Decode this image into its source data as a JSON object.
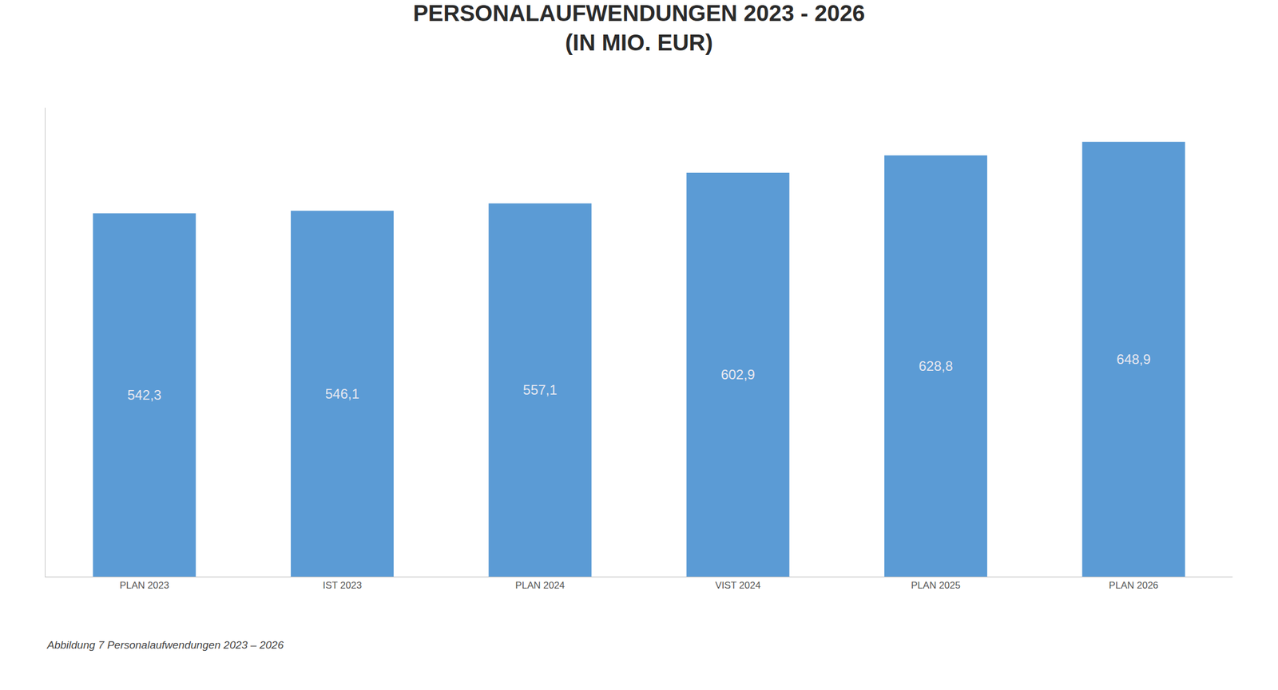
{
  "chart_data": {
    "type": "bar",
    "title": "PERSONALAUFWENDUNGEN 2023 - 2026",
    "subtitle": "(IN MIO. EUR)",
    "categories": [
      "PLAN 2023",
      "IST 2023",
      "PLAN 2024",
      "VIST 2024",
      "PLAN 2025",
      "PLAN 2026"
    ],
    "values": [
      542.3,
      546.1,
      557.1,
      602.9,
      628.8,
      648.9
    ],
    "value_labels": [
      "542,3",
      "546,1",
      "557,1",
      "602,9",
      "628,8",
      "648,9"
    ],
    "data_labels": true,
    "color": "#5b9bd5",
    "ylim": [
      0,
      700
    ],
    "tick_labels": "x",
    "grid": false,
    "annotations": [
      "Abbildung 7 Personalaufwendungen 2023 – 2026"
    ]
  }
}
